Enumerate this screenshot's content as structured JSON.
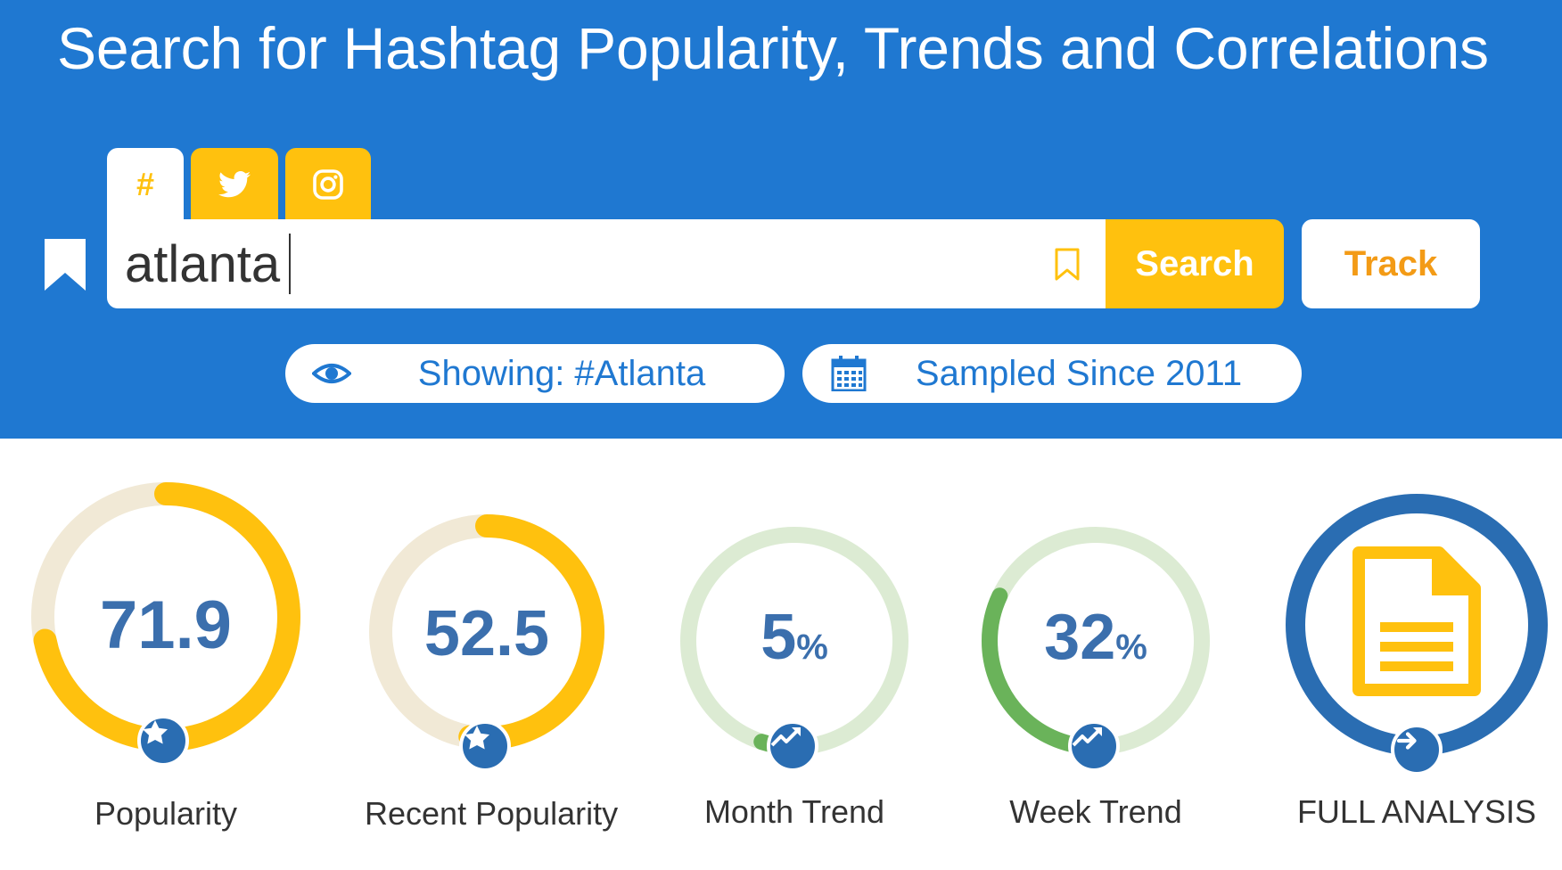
{
  "header": {
    "title": "Search for Hashtag Popularity, Trends and Correlations",
    "tabs": [
      {
        "label": "#",
        "icon": "hashtag-icon",
        "active": true
      },
      {
        "label": "",
        "icon": "twitter-icon",
        "active": false
      },
      {
        "label": "",
        "icon": "instagram-icon",
        "active": false
      }
    ],
    "search": {
      "value": "atlanta",
      "placeholder": ""
    },
    "buttons": {
      "search_label": "Search",
      "track_label": "Track"
    },
    "info": {
      "showing": "Showing: #Atlanta",
      "sampled": "Sampled Since 2011"
    }
  },
  "metrics": [
    {
      "value": "71.9",
      "unit": "",
      "label": "Popularity",
      "progress": 0.719,
      "icon": "star-icon"
    },
    {
      "value": "52.5",
      "unit": "",
      "label": "Recent Popularity",
      "progress": 0.525,
      "icon": "star-icon"
    },
    {
      "value": "5",
      "unit": "%",
      "label": "Month Trend",
      "progress": 0.05,
      "icon": "trend-up-icon"
    },
    {
      "value": "32",
      "unit": "%",
      "label": "Week Trend",
      "progress": 0.32,
      "icon": "trend-up-icon"
    },
    {
      "value": "",
      "unit": "",
      "label": "FULL ANALYSIS",
      "icon": "document-icon",
      "badge_icon": "arrow-right-icon"
    }
  ],
  "colors": {
    "header_bg": "#1f78d1",
    "accent_yellow": "#ffc10e",
    "track_orange": "#f39b16",
    "value_blue": "#3b6fad",
    "trend_green": "#6ab35a",
    "trend_track": "#dcebd3",
    "pop_track": "#f1e9d6",
    "analysis_blue": "#2a6db2"
  }
}
